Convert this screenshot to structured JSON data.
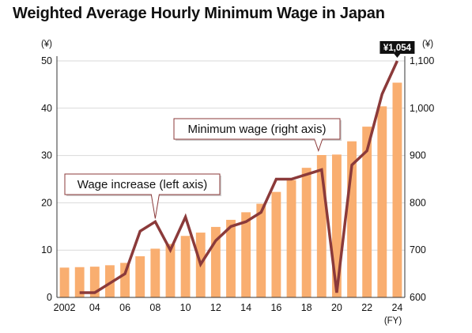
{
  "chart_data": {
    "type": "bar+line",
    "title": "Weighted Average Hourly Minimum Wage in Japan",
    "left_axis": {
      "unit_label": "(¥)",
      "ylim": [
        0,
        50
      ],
      "ticks": [
        "0",
        "10",
        "20",
        "30",
        "40",
        "50"
      ]
    },
    "right_axis": {
      "unit_label": "(¥)",
      "ylim": [
        600,
        1100
      ],
      "ticks": [
        "600",
        "700",
        "800",
        "900",
        "1,000",
        "1,100"
      ]
    },
    "x_axis": {
      "unit_label": "(FY)",
      "tick_labels": [
        "2002",
        "04",
        "06",
        "08",
        "10",
        "12",
        "14",
        "16",
        "18",
        "20",
        "22",
        "24"
      ]
    },
    "x": [
      2002,
      2003,
      2004,
      2005,
      2006,
      2007,
      2008,
      2009,
      2010,
      2011,
      2012,
      2013,
      2014,
      2015,
      2016,
      2017,
      2018,
      2019,
      2020,
      2021,
      2022,
      2023,
      2024
    ],
    "series": [
      {
        "name": "Minimum wage (right axis)",
        "type": "bar",
        "axis": "right",
        "color": "#F9AE70",
        "values": [
          663,
          664,
          665,
          668,
          673,
          687,
          703,
          713,
          730,
          737,
          749,
          764,
          780,
          798,
          823,
          848,
          874,
          901,
          902,
          930,
          961,
          1004,
          1054
        ]
      },
      {
        "name": "Wage increase (left axis)",
        "type": "line",
        "axis": "left",
        "color": "#8B3A3A",
        "values": [
          null,
          1,
          1,
          3,
          5,
          14,
          16,
          10,
          17,
          7,
          12,
          15,
          16,
          18,
          25,
          25,
          26,
          27,
          1,
          28,
          31,
          43,
          50
        ]
      }
    ],
    "callouts": {
      "bars": "Minimum wage (right axis)",
      "line": "Wage increase (left axis)"
    },
    "highlight_badge": "¥1,054",
    "grid": true,
    "legend": "callouts"
  },
  "colors": {
    "bar": "#F9AE70",
    "line": "#8B3A3A",
    "grid": "#D9D9D9",
    "badge": "#111111"
  }
}
